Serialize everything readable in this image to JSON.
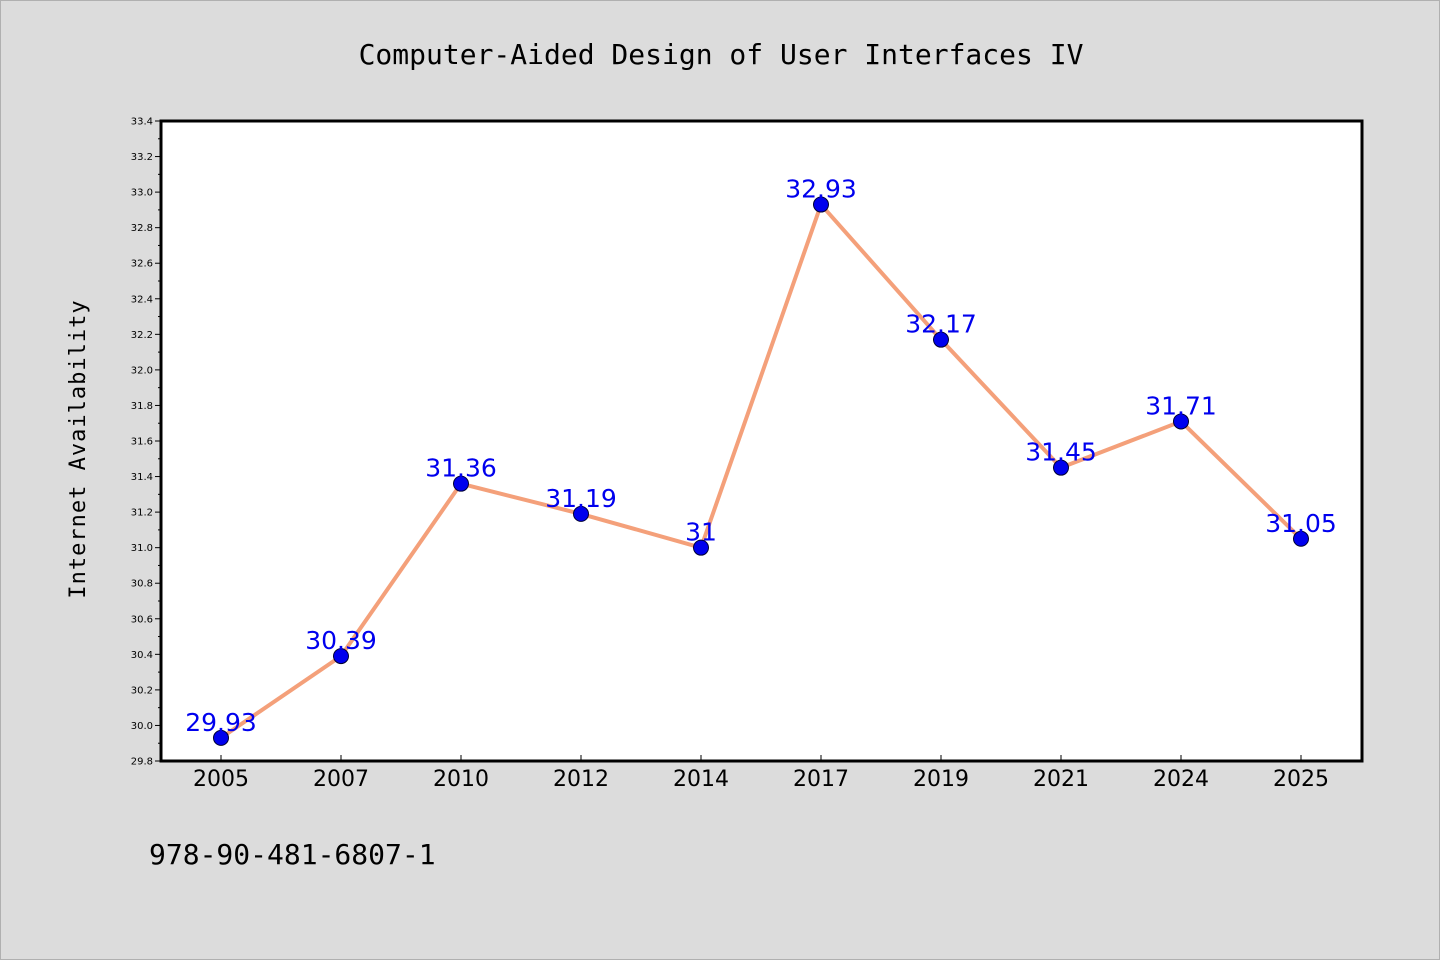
{
  "chart_data": {
    "type": "line",
    "title": "Computer-Aided Design of User Interfaces IV",
    "xlabel": "",
    "ylabel": "Internet Availability",
    "categories": [
      "2005",
      "2007",
      "2010",
      "2012",
      "2014",
      "2017",
      "2019",
      "2021",
      "2024",
      "2025"
    ],
    "series": [
      {
        "values": [
          29.93,
          30.39,
          31.36,
          31.19,
          31.0,
          32.93,
          32.17,
          31.45,
          31.71,
          31.05
        ],
        "data_labels": [
          "29.93",
          "30.39",
          "31.36",
          "31.19",
          "31",
          "32.93",
          "32.17",
          "31.45",
          "31.71",
          "31.05"
        ],
        "line_color": "#f4a07a",
        "marker_color": "#0000ee",
        "label_color": "#0000ee"
      }
    ],
    "ylim": [
      29.8,
      33.4
    ],
    "yticks": [
      "29.8",
      "30.0",
      "30.2",
      "30.4",
      "30.6",
      "30.8",
      "31.0",
      "31.2",
      "31.4",
      "31.6",
      "31.8",
      "32.0",
      "32.2",
      "32.4",
      "32.6",
      "32.8",
      "33.0",
      "33.2",
      "33.4"
    ],
    "grid": false,
    "legend": "none"
  },
  "footer": {
    "text": "978-90-481-6807-1"
  },
  "colors": {
    "background": "#dcdcdc",
    "plot_background": "#ffffff",
    "axis": "#000000"
  }
}
